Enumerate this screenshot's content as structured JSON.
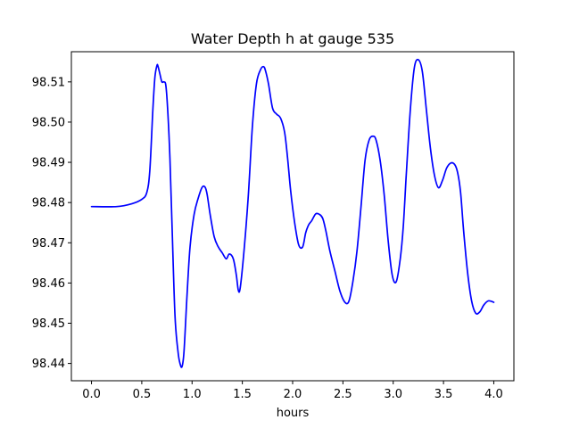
{
  "chart_data": {
    "type": "line",
    "title": "Water Depth h at gauge 535",
    "xlabel": "hours",
    "ylabel": "",
    "xlim": [
      -0.2,
      4.2
    ],
    "ylim": [
      98.4357,
      98.5175
    ],
    "grid": false,
    "legend": "none",
    "x_ticks": [
      0.0,
      0.5,
      1.0,
      1.5,
      2.0,
      2.5,
      3.0,
      3.5,
      4.0
    ],
    "x_tick_labels": [
      "0.0",
      "0.5",
      "1.0",
      "1.5",
      "2.0",
      "2.5",
      "3.0",
      "3.5",
      "4.0"
    ],
    "y_ticks": [
      98.44,
      98.45,
      98.46,
      98.47,
      98.48,
      98.49,
      98.5,
      98.51
    ],
    "y_tick_labels": [
      "98.44",
      "98.45",
      "98.46",
      "98.47",
      "98.48",
      "98.49",
      "98.50",
      "98.51"
    ],
    "series": [
      {
        "color": "#0000ff",
        "x": [
          0.0,
          0.25,
          0.4,
          0.5,
          0.55,
          0.58,
          0.61,
          0.63,
          0.65,
          0.66,
          0.68,
          0.7,
          0.72,
          0.74,
          0.76,
          0.78,
          0.8,
          0.83,
          0.86,
          0.88,
          0.9,
          0.92,
          0.95,
          0.98,
          1.02,
          1.06,
          1.1,
          1.13,
          1.15,
          1.18,
          1.22,
          1.26,
          1.3,
          1.34,
          1.37,
          1.41,
          1.44,
          1.46,
          1.48,
          1.52,
          1.56,
          1.6,
          1.64,
          1.68,
          1.71,
          1.73,
          1.76,
          1.8,
          1.84,
          1.88,
          1.92,
          1.95,
          1.98,
          2.02,
          2.06,
          2.1,
          2.13,
          2.16,
          2.19,
          2.23,
          2.27,
          2.3,
          2.33,
          2.37,
          2.42,
          2.47,
          2.52,
          2.56,
          2.6,
          2.64,
          2.68,
          2.72,
          2.76,
          2.8,
          2.83,
          2.87,
          2.91,
          2.95,
          2.99,
          3.03,
          3.07,
          3.1,
          3.13,
          3.17,
          3.21,
          3.25,
          3.29,
          3.33,
          3.37,
          3.41,
          3.45,
          3.49,
          3.53,
          3.57,
          3.61,
          3.64,
          3.67,
          3.7,
          3.74,
          3.78,
          3.82,
          3.86,
          3.9,
          3.94,
          3.97,
          4.0
        ],
        "y": [
          98.479,
          98.479,
          98.4797,
          98.4808,
          98.4825,
          98.488,
          98.503,
          98.511,
          98.514,
          98.514,
          98.512,
          98.51,
          98.51,
          98.509,
          98.502,
          98.491,
          98.475,
          98.452,
          98.443,
          98.44,
          98.4392,
          98.443,
          98.457,
          98.469,
          98.477,
          98.481,
          98.4838,
          98.4838,
          98.482,
          98.477,
          98.4715,
          98.469,
          98.4675,
          98.466,
          98.4672,
          98.466,
          98.462,
          98.4582,
          98.459,
          98.469,
          98.482,
          98.499,
          98.5095,
          98.513,
          98.5138,
          98.5128,
          98.5095,
          98.5035,
          98.502,
          98.501,
          98.4975,
          98.491,
          98.483,
          98.475,
          98.4695,
          98.469,
          98.4725,
          98.4745,
          98.4755,
          98.4772,
          98.477,
          98.476,
          98.473,
          98.468,
          98.463,
          98.458,
          98.4552,
          98.4555,
          98.4605,
          98.468,
          98.479,
          98.4905,
          98.4955,
          98.4965,
          98.4955,
          98.4905,
          98.482,
          98.4705,
          98.462,
          98.4603,
          98.466,
          98.474,
          98.487,
          98.503,
          98.5135,
          98.5155,
          98.5125,
          98.503,
          98.4935,
          98.4868,
          98.4837,
          98.4855,
          98.4885,
          98.4898,
          98.4895,
          98.4875,
          98.4825,
          98.473,
          98.4625,
          98.4555,
          98.4525,
          98.4528,
          98.4545,
          98.4555,
          98.4555,
          98.4552
        ]
      }
    ]
  }
}
